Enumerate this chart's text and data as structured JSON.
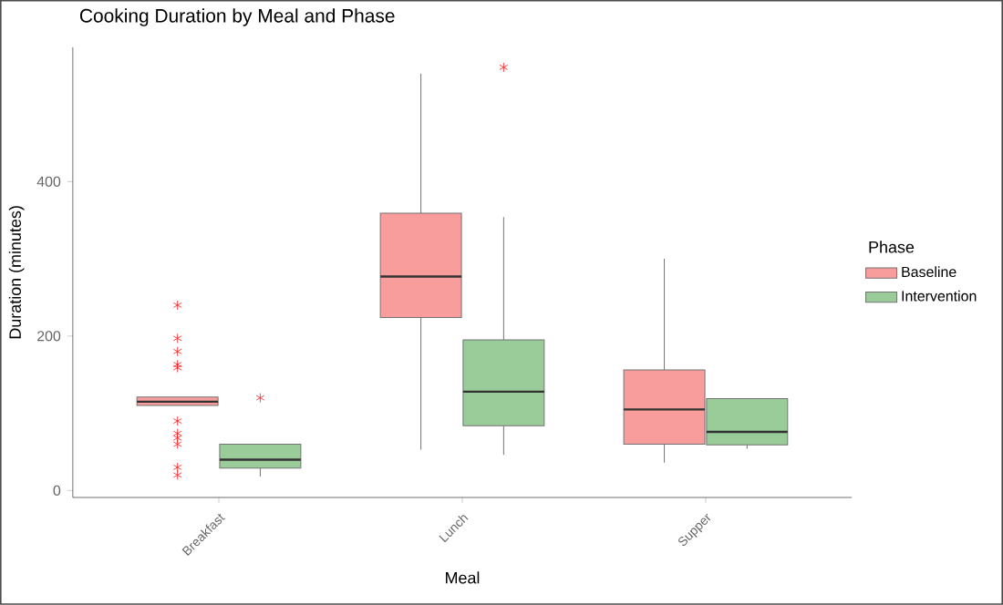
{
  "chart_data": {
    "type": "box",
    "title": "Cooking Duration by Meal and Phase",
    "xlabel": "Meal",
    "ylabel": "Duration (minutes)",
    "legend_title": "Phase",
    "legend": "right",
    "grid": false,
    "marker": "star",
    "categories": [
      "Breakfast",
      "Lunch",
      "Supper"
    ],
    "ylim": [
      -9,
      574
    ],
    "yticks": [
      0,
      200,
      400
    ],
    "series": [
      {
        "name": "Baseline",
        "color": "#f89c9c",
        "boxes": [
          {
            "low": 110,
            "q1": 110,
            "median": 115,
            "q3": 121,
            "high": 121,
            "outliers": [
              240,
              197,
              180,
              163,
              159,
              90,
              74,
              68,
              60,
              30,
              20
            ]
          },
          {
            "low": 53,
            "q1": 224,
            "median": 277,
            "q3": 359,
            "high": 540
          },
          {
            "low": 36,
            "q1": 60,
            "median": 105,
            "q3": 156,
            "high": 300
          }
        ]
      },
      {
        "name": "Intervention",
        "color": "#99cc99",
        "boxes": [
          {
            "low": 18,
            "q1": 29,
            "median": 40,
            "q3": 60,
            "high": 60,
            "outliers": [
              120
            ]
          },
          {
            "low": 46,
            "q1": 84,
            "median": 128,
            "q3": 195,
            "high": 354,
            "outliers": [
              548
            ]
          },
          {
            "low": 54,
            "q1": 59,
            "median": 76,
            "q3": 119,
            "high": 119
          }
        ]
      }
    ]
  }
}
